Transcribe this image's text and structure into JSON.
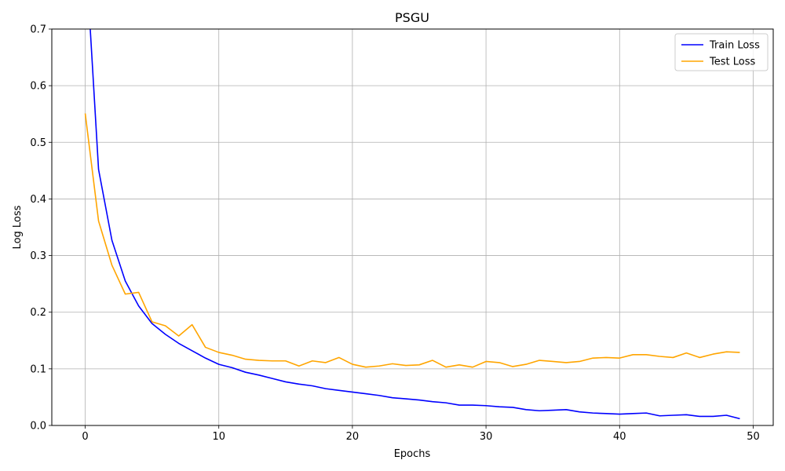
{
  "chart_data": {
    "type": "line",
    "title": "PSGU",
    "xlabel": "Epochs",
    "ylabel": "Log Loss",
    "xlim": [
      -2.5,
      51.5
    ],
    "ylim": [
      0,
      0.7
    ],
    "xticks": [
      "0",
      "10",
      "20",
      "30",
      "40",
      "50"
    ],
    "yticks": [
      "0.0",
      "0.1",
      "0.2",
      "0.3",
      "0.4",
      "0.5",
      "0.6",
      "0.7"
    ],
    "grid": true,
    "legend_position": "top-right",
    "x": [
      0,
      1,
      2,
      3,
      4,
      5,
      6,
      7,
      8,
      9,
      10,
      11,
      12,
      13,
      14,
      15,
      16,
      17,
      18,
      19,
      20,
      21,
      22,
      23,
      24,
      25,
      26,
      27,
      28,
      29,
      30,
      31,
      32,
      33,
      34,
      35,
      36,
      37,
      38,
      39,
      40,
      41,
      42,
      43,
      44,
      45,
      46,
      47,
      48,
      49
    ],
    "series": [
      {
        "name": "Train Loss",
        "color": "#0000ff",
        "values": [
          0.85,
          0.452,
          0.327,
          0.255,
          0.211,
          0.18,
          0.161,
          0.145,
          0.132,
          0.119,
          0.108,
          0.102,
          0.094,
          0.089,
          0.083,
          0.077,
          0.073,
          0.07,
          0.065,
          0.062,
          0.059,
          0.056,
          0.053,
          0.049,
          0.047,
          0.045,
          0.042,
          0.04,
          0.036,
          0.036,
          0.035,
          0.033,
          0.032,
          0.028,
          0.026,
          0.027,
          0.028,
          0.024,
          0.022,
          0.021,
          0.02,
          0.021,
          0.022,
          0.017,
          0.018,
          0.019,
          0.016,
          0.016,
          0.018,
          0.012
        ]
      },
      {
        "name": "Test Loss",
        "color": "#ffa500",
        "values": [
          0.551,
          0.361,
          0.283,
          0.232,
          0.235,
          0.183,
          0.176,
          0.158,
          0.178,
          0.138,
          0.129,
          0.124,
          0.117,
          0.115,
          0.114,
          0.114,
          0.105,
          0.114,
          0.111,
          0.12,
          0.108,
          0.103,
          0.105,
          0.109,
          0.106,
          0.107,
          0.115,
          0.103,
          0.107,
          0.103,
          0.113,
          0.111,
          0.104,
          0.108,
          0.115,
          0.113,
          0.111,
          0.113,
          0.119,
          0.12,
          0.119,
          0.125,
          0.125,
          0.122,
          0.12,
          0.128,
          0.12,
          0.126,
          0.13,
          0.129
        ]
      }
    ]
  }
}
